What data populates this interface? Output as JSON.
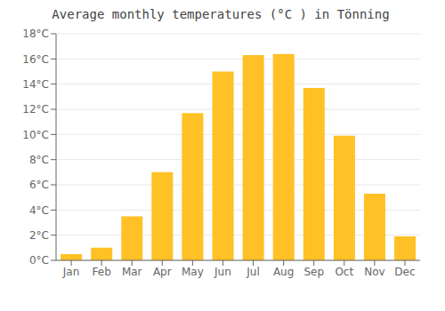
{
  "chart_data": {
    "type": "bar",
    "title": "Average monthly temperatures (°C ) in Tönning",
    "categories": [
      "Jan",
      "Feb",
      "Mar",
      "Apr",
      "May",
      "Jun",
      "Jul",
      "Aug",
      "Sep",
      "Oct",
      "Nov",
      "Dec"
    ],
    "values": [
      0.5,
      1.0,
      3.5,
      7.0,
      11.7,
      15.0,
      16.3,
      16.4,
      13.7,
      9.9,
      5.3,
      1.9
    ],
    "color": "#FFC125",
    "ylim": [
      0,
      18
    ],
    "yticks": [
      {
        "value": 0,
        "label": "0°C"
      },
      {
        "value": 2,
        "label": "2°C"
      },
      {
        "value": 4,
        "label": "4°C"
      },
      {
        "value": 6,
        "label": "6°C"
      },
      {
        "value": 8,
        "label": "8°C"
      },
      {
        "value": 10,
        "label": "10°C"
      },
      {
        "value": 12,
        "label": "12°C"
      },
      {
        "value": 14,
        "label": "14°C"
      },
      {
        "value": 16,
        "label": "16°C"
      },
      {
        "value": 18,
        "label": "18°C"
      }
    ],
    "grid": true
  }
}
